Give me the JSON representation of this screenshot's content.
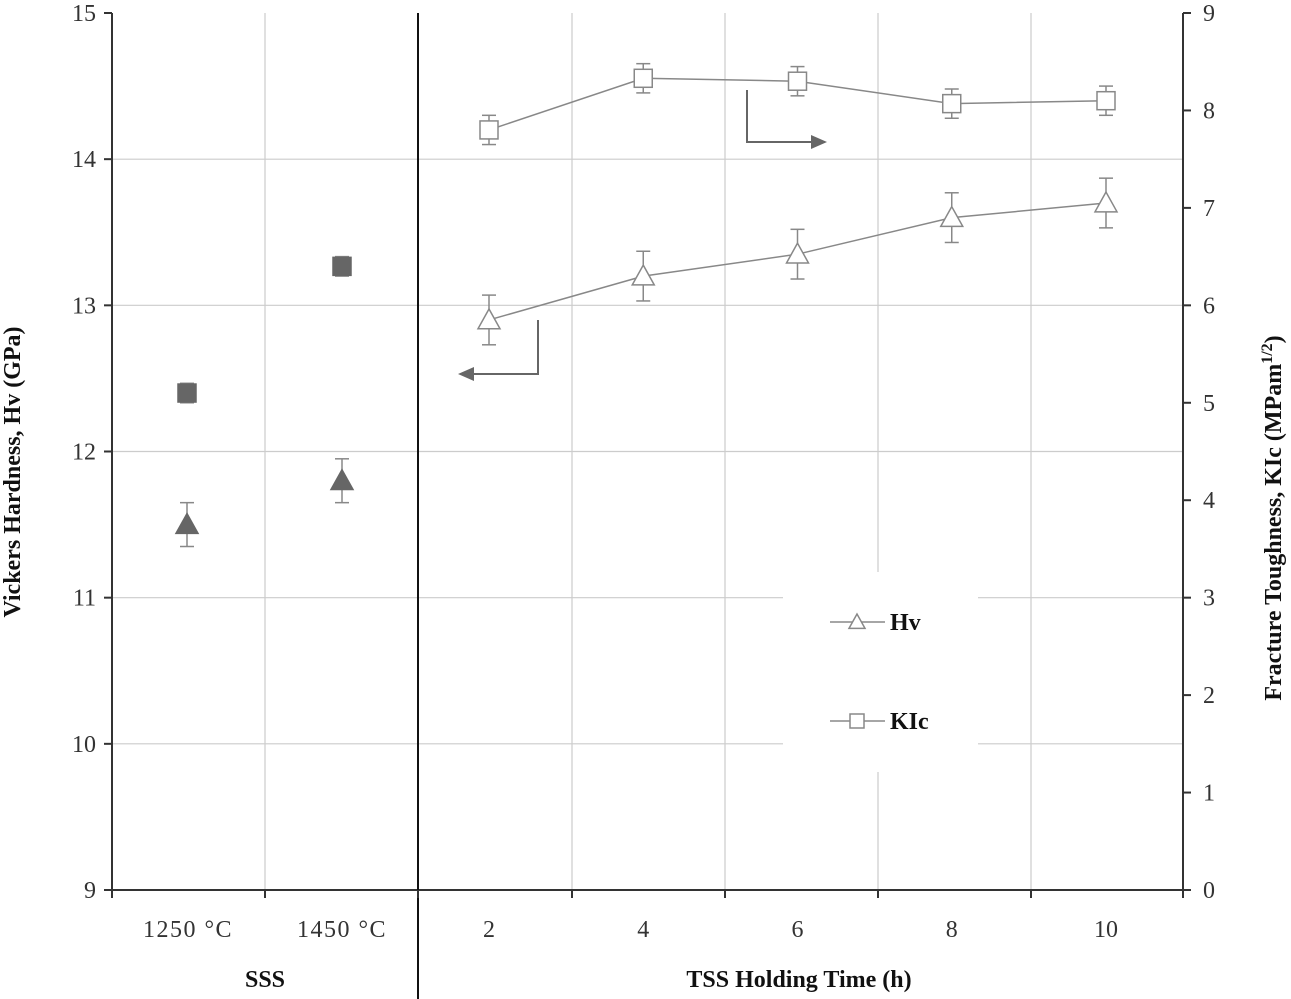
{
  "chart_data": {
    "type": "scatter",
    "y_left_label": "Vickers Hardness, Hv (GPa)",
    "y_right_label_main": "Fracture Toughness, KIc (MPam",
    "y_right_label_sup": "1/2",
    "y_right_label_end": ")",
    "y_left_lim": [
      9,
      15
    ],
    "y_left_ticks": [
      "9",
      "10",
      "11",
      "12",
      "13",
      "14",
      "15"
    ],
    "y_right_lim": [
      0,
      9
    ],
    "y_right_ticks": [
      "0",
      "1",
      "2",
      "3",
      "4",
      "5",
      "6",
      "7",
      "8",
      "9"
    ],
    "grid": true,
    "sss_panel": {
      "xlabel": "SSS",
      "categories": [
        "1250 °C",
        "1450 °C"
      ],
      "hv": {
        "values": [
          11.5,
          11.8
        ],
        "errors": [
          0.15,
          0.15
        ],
        "color": "#666666"
      },
      "kic": {
        "values": [
          5.1,
          6.4
        ],
        "errors": [
          0.1,
          0.1
        ],
        "color": "#666666"
      }
    },
    "tss_panel": {
      "xlabel": "TSS  Holding Time (h)",
      "x": [
        2,
        4,
        6,
        8,
        10
      ],
      "x_ticks": [
        "2",
        "4",
        "6",
        "8",
        "10"
      ],
      "series": [
        {
          "name": "Hv",
          "axis": "left",
          "marker": "triangle-open",
          "values": [
            12.9,
            13.2,
            13.35,
            13.6,
            13.7
          ],
          "errors": [
            0.17,
            0.17,
            0.17,
            0.17,
            0.17
          ]
        },
        {
          "name": "KIc",
          "axis": "right",
          "marker": "square-open",
          "values": [
            7.8,
            8.33,
            8.3,
            8.07,
            8.1
          ],
          "errors": [
            0.15,
            0.15,
            0.15,
            0.15,
            0.15
          ]
        }
      ]
    },
    "legend": {
      "position": "lower-right",
      "items": [
        "Hv",
        "KIc"
      ]
    },
    "colors": {
      "line": "#888888",
      "grid": "#cccccc",
      "axis": "#333333",
      "filled_marker": "#666666",
      "arrow": "#666666"
    }
  }
}
